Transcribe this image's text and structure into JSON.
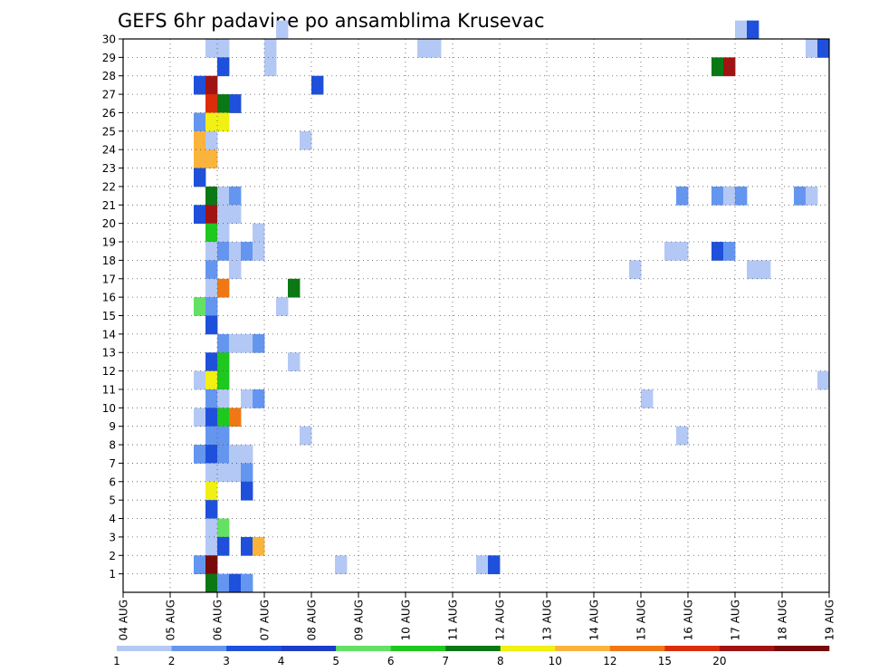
{
  "chart_data": {
    "type": "heatmap",
    "title": "GEFS 6hr padavine po ansamblima Krusevac",
    "xlabel": "",
    "ylabel": "",
    "x_ticks": [
      "04 AUG",
      "05 AUG",
      "06 AUG",
      "07 AUG",
      "08 AUG",
      "09 AUG",
      "10 AUG",
      "11 AUG",
      "12 AUG",
      "13 AUG",
      "14 AUG",
      "15 AUG",
      "16 AUG",
      "17 AUG",
      "18 AUG",
      "19 AUG"
    ],
    "y_ticks": [
      "1",
      "2",
      "3",
      "4",
      "5",
      "6",
      "7",
      "8",
      "9",
      "10",
      "11",
      "12",
      "13",
      "14",
      "15",
      "16",
      "17",
      "18",
      "19",
      "20",
      "21",
      "22",
      "23",
      "24",
      "25",
      "26",
      "27",
      "28",
      "29",
      "30"
    ],
    "x_unit": "6-hour steps from 04 AUG",
    "xlim": [
      0,
      60
    ],
    "ylim": [
      0,
      30
    ],
    "grid": true,
    "colorbar": {
      "labels": [
        "1",
        "2",
        "3",
        "4",
        "5",
        "6",
        "7",
        "8",
        "10",
        "12",
        "15",
        "20"
      ],
      "colors": [
        "#b4c8f5",
        "#6496f0",
        "#1e50dc",
        "#1e3cc8",
        "#64e164",
        "#1ec81e",
        "#0a7814",
        "#f0f014",
        "#fab43c",
        "#f07814",
        "#dc2d0a",
        "#a01414",
        "#780a0a"
      ]
    },
    "cells": [
      [
        7,
        29,
        0
      ],
      [
        8,
        29,
        0
      ],
      [
        12,
        29,
        0
      ],
      [
        13,
        30,
        0
      ],
      [
        25,
        29,
        0
      ],
      [
        26,
        29,
        0
      ],
      [
        52,
        30,
        0
      ],
      [
        53,
        30,
        2
      ],
      [
        58,
        29,
        0
      ],
      [
        59,
        29,
        2
      ],
      [
        8,
        28,
        2
      ],
      [
        12,
        28,
        0
      ],
      [
        6,
        27,
        2
      ],
      [
        7,
        27,
        11
      ],
      [
        16,
        27,
        2
      ],
      [
        7,
        26,
        10
      ],
      [
        8,
        26,
        6
      ],
      [
        9,
        26,
        2
      ],
      [
        6,
        25,
        1
      ],
      [
        7,
        25,
        7
      ],
      [
        8,
        25,
        7
      ],
      [
        6,
        24,
        8
      ],
      [
        7,
        24,
        0
      ],
      [
        15,
        24,
        0
      ],
      [
        6,
        23,
        8
      ],
      [
        7,
        23,
        8
      ],
      [
        6,
        22,
        2
      ],
      [
        7,
        21,
        6
      ],
      [
        8,
        21,
        0
      ],
      [
        9,
        21,
        1
      ],
      [
        47,
        21,
        1
      ],
      [
        50,
        21,
        1
      ],
      [
        51,
        21,
        0
      ],
      [
        52,
        21,
        1
      ],
      [
        57,
        21,
        1
      ],
      [
        58,
        21,
        0
      ],
      [
        6,
        20,
        2
      ],
      [
        7,
        20,
        11
      ],
      [
        8,
        20,
        0
      ],
      [
        9,
        20,
        0
      ],
      [
        7,
        19,
        5
      ],
      [
        8,
        19,
        0
      ],
      [
        11,
        19,
        0
      ],
      [
        7,
        18,
        0
      ],
      [
        8,
        18,
        1
      ],
      [
        9,
        18,
        0
      ],
      [
        10,
        18,
        1
      ],
      [
        11,
        18,
        0
      ],
      [
        46,
        18,
        0
      ],
      [
        47,
        18,
        0
      ],
      [
        50,
        18,
        2
      ],
      [
        51,
        18,
        1
      ],
      [
        7,
        17,
        1
      ],
      [
        9,
        17,
        0
      ],
      [
        43,
        17,
        0
      ],
      [
        53,
        17,
        0
      ],
      [
        54,
        17,
        0
      ],
      [
        7,
        16,
        0
      ],
      [
        8,
        16,
        9
      ],
      [
        14,
        16,
        6
      ],
      [
        6,
        15,
        4
      ],
      [
        7,
        15,
        1
      ],
      [
        13,
        15,
        0
      ],
      [
        7,
        14,
        2
      ],
      [
        8,
        13,
        1
      ],
      [
        9,
        13,
        0
      ],
      [
        10,
        13,
        0
      ],
      [
        11,
        13,
        1
      ],
      [
        7,
        12,
        2
      ],
      [
        8,
        12,
        5
      ],
      [
        14,
        12,
        0
      ],
      [
        6,
        11,
        0
      ],
      [
        7,
        11,
        7
      ],
      [
        8,
        11,
        5
      ],
      [
        59,
        11,
        0
      ],
      [
        7,
        10,
        1
      ],
      [
        8,
        10,
        0
      ],
      [
        10,
        10,
        0
      ],
      [
        11,
        10,
        1
      ],
      [
        44,
        10,
        0
      ],
      [
        6,
        9,
        0
      ],
      [
        7,
        9,
        2
      ],
      [
        8,
        9,
        5
      ],
      [
        9,
        9,
        9
      ],
      [
        7,
        8,
        1
      ],
      [
        8,
        8,
        1
      ],
      [
        15,
        8,
        0
      ],
      [
        47,
        8,
        0
      ],
      [
        6,
        7,
        1
      ],
      [
        7,
        7,
        2
      ],
      [
        8,
        7,
        1
      ],
      [
        9,
        7,
        0
      ],
      [
        10,
        7,
        0
      ],
      [
        7,
        6,
        0
      ],
      [
        8,
        6,
        0
      ],
      [
        9,
        6,
        0
      ],
      [
        10,
        6,
        1
      ],
      [
        7,
        5,
        7
      ],
      [
        10,
        5,
        2
      ],
      [
        7,
        4,
        2
      ],
      [
        7,
        3,
        0
      ],
      [
        8,
        3,
        4
      ],
      [
        7,
        2,
        0
      ],
      [
        8,
        2,
        2
      ],
      [
        10,
        2,
        2
      ],
      [
        11,
        2,
        8
      ],
      [
        6,
        1,
        1
      ],
      [
        7,
        1,
        12
      ],
      [
        18,
        1,
        0
      ],
      [
        30,
        1,
        0
      ],
      [
        31,
        1,
        2
      ],
      [
        7,
        0,
        6
      ],
      [
        8,
        0,
        1
      ],
      [
        9,
        0,
        2
      ],
      [
        10,
        0,
        1
      ]
    ],
    "top_labels": [
      [
        49,
        28,
        "green_red"
      ]
    ],
    "extra_cells": [
      [
        50,
        28,
        6
      ],
      [
        51,
        28,
        11
      ]
    ]
  }
}
